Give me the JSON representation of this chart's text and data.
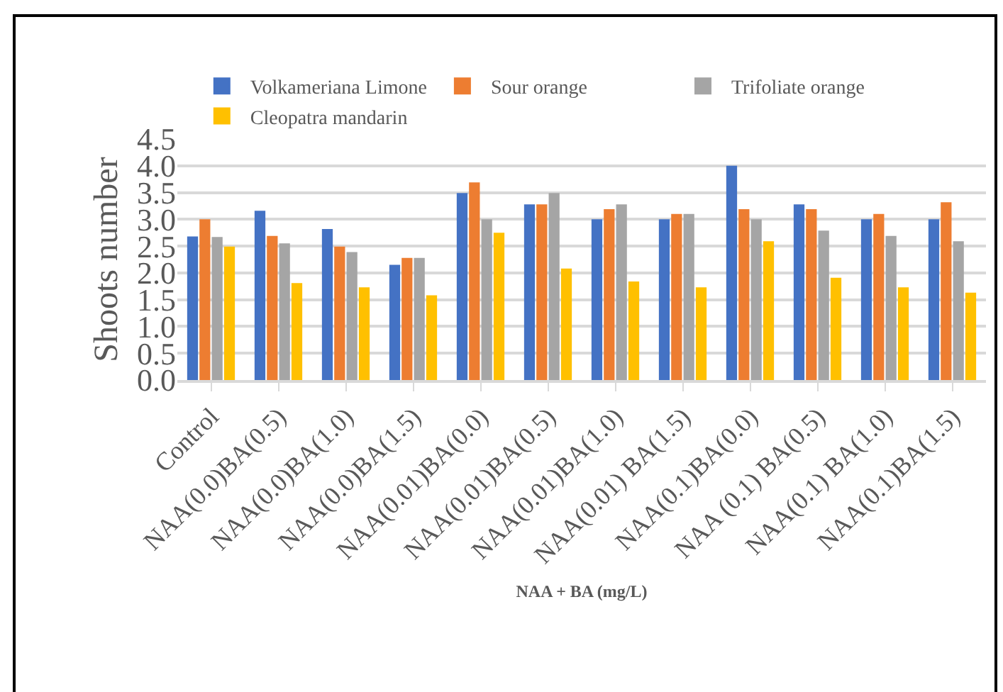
{
  "chart_data": {
    "type": "bar",
    "xlabel": "NAA + BA (mg/L)",
    "ylabel": "Shoots number",
    "categories": [
      "Control",
      "NAA(0.0)BA(0.5)",
      "NAA(0.0)BA(1.0)",
      "NAA(0.0)BA(1.5)",
      "NAA(0.01)BA(0.0)",
      "NAA(0.01)BA(0.5)",
      "NAA(0.01)BA(1.0)",
      "NAA(0.01) BA(1.5)",
      "NAA(0.1)BA(0.0)",
      "NAA (0.1) BA(0.5)",
      "NAA(0.1) BA(1.0)",
      "NAA(0.1)BA(1.5)"
    ],
    "series": [
      {
        "name": "Volkameriana Limone",
        "color": "#4472c4",
        "values": [
          2.68,
          3.16,
          2.82,
          2.15,
          3.49,
          3.28,
          3.0,
          3.0,
          4.0,
          3.28,
          3.0,
          3.0
        ]
      },
      {
        "name": "Sour orange",
        "color": "#ed7d31",
        "values": [
          3.0,
          2.69,
          2.49,
          2.28,
          3.69,
          3.28,
          3.19,
          3.1,
          3.19,
          3.19,
          3.1,
          3.32
        ]
      },
      {
        "name": "Trifoliate orange",
        "color": "#a5a5a5",
        "values": [
          2.67,
          2.55,
          2.39,
          2.28,
          3.0,
          3.49,
          3.28,
          3.1,
          3.0,
          2.79,
          2.69,
          2.59
        ]
      },
      {
        "name": "Cleopatra mandarin",
        "color": "#ffc000",
        "values": [
          2.49,
          1.81,
          1.73,
          1.58,
          2.75,
          2.08,
          1.84,
          1.73,
          2.59,
          1.91,
          1.73,
          1.63
        ]
      }
    ],
    "ylim": [
      0,
      4.5
    ],
    "yticks": [
      {
        "value": 0,
        "label": "0.0"
      },
      {
        "value": 0.5,
        "label": "0.5"
      },
      {
        "value": 1,
        "label": "1.0"
      },
      {
        "value": 1.5,
        "label": "1.5"
      },
      {
        "value": 2,
        "label": "2.0"
      },
      {
        "value": 2.5,
        "label": "2.5"
      },
      {
        "value": 3,
        "label": "3.0"
      },
      {
        "value": 3.5,
        "label": "3.5"
      },
      {
        "value": 4,
        "label": "4.0"
      },
      {
        "value": 4.5,
        "label": "4.5"
      }
    ],
    "grid": "y",
    "legend": "top"
  }
}
